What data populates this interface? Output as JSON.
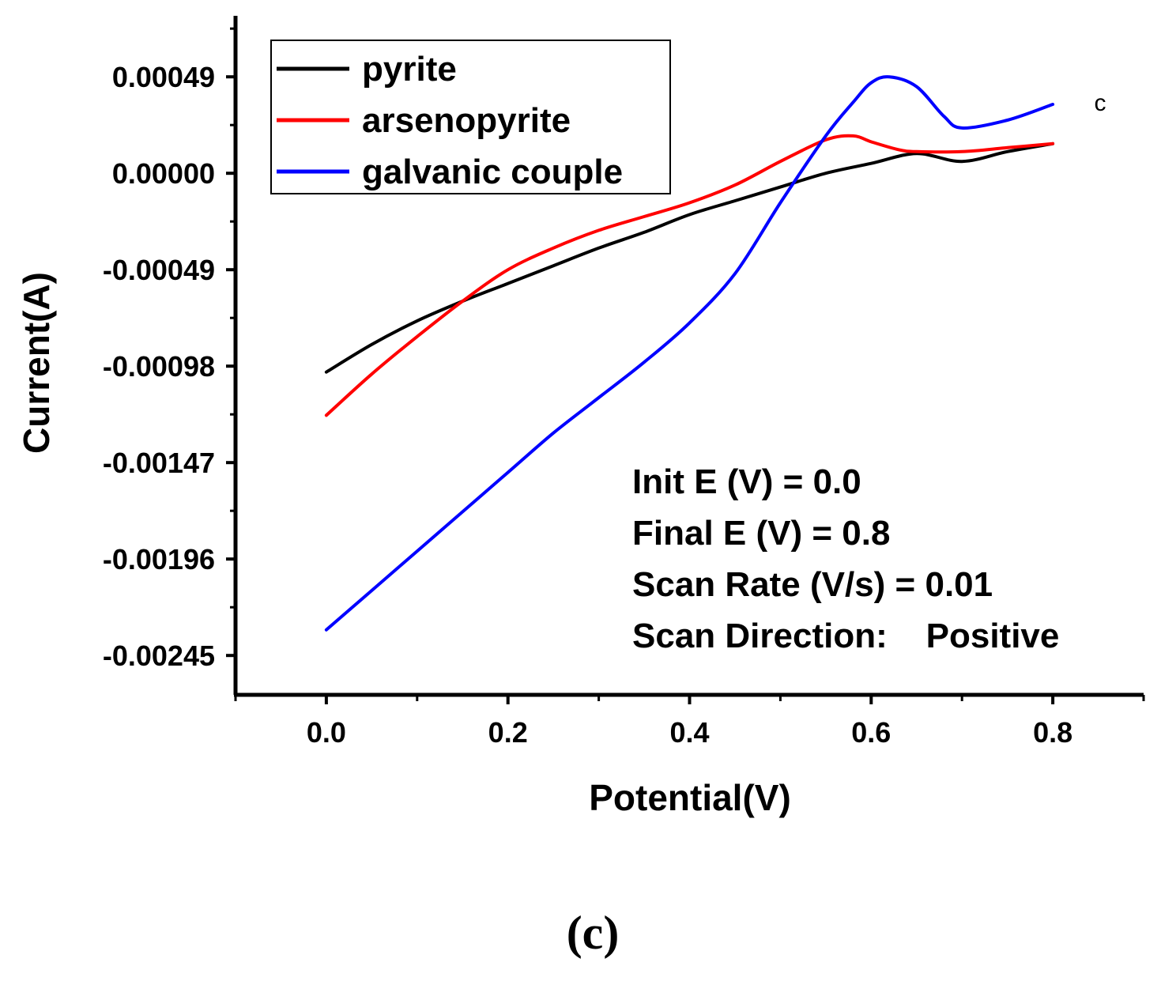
{
  "chart_data": {
    "type": "line",
    "title": "",
    "xlabel": "Potential(V)",
    "ylabel": "Current(A)",
    "xlim": [
      -0.1,
      0.9
    ],
    "ylim": [
      -0.00265,
      0.0008
    ],
    "x_ticks": [
      0.0,
      0.2,
      0.4,
      0.6,
      0.8
    ],
    "x_tick_labels": [
      "0.0",
      "0.2",
      "0.4",
      "0.6",
      "0.8"
    ],
    "y_ticks": [
      0.00049,
      0.0,
      -0.00049,
      -0.00098,
      -0.00147,
      -0.00196,
      -0.00245
    ],
    "y_tick_labels": [
      "0.00049",
      "0.00000",
      "-0.00049",
      "-0.00098",
      "-0.00147",
      "-0.00196",
      "-0.00245"
    ],
    "grid": false,
    "legend_position": "top-left",
    "series": [
      {
        "name": "pyrite",
        "color": "#000000",
        "x": [
          0.0,
          0.05,
          0.1,
          0.15,
          0.2,
          0.25,
          0.3,
          0.35,
          0.4,
          0.45,
          0.5,
          0.55,
          0.6,
          0.65,
          0.7,
          0.75,
          0.8
        ],
        "y": [
          -0.00101,
          -0.00087,
          -0.00075,
          -0.00065,
          -0.00056,
          -0.00047,
          -0.00038,
          -0.0003,
          -0.00021,
          -0.00014,
          -7e-05,
          0.0,
          5e-05,
          0.0001,
          6e-05,
          0.00011,
          0.00015
        ]
      },
      {
        "name": "arsenopyrite",
        "color": "#ff0000",
        "x": [
          0.0,
          0.05,
          0.1,
          0.15,
          0.2,
          0.25,
          0.3,
          0.35,
          0.4,
          0.45,
          0.5,
          0.55,
          0.58,
          0.6,
          0.63,
          0.65,
          0.7,
          0.75,
          0.8
        ],
        "y": [
          -0.00123,
          -0.00102,
          -0.00083,
          -0.00065,
          -0.00049,
          -0.00038,
          -0.00029,
          -0.00022,
          -0.00015,
          -6e-05,
          6e-05,
          0.00017,
          0.00019,
          0.00016,
          0.00012,
          0.00011,
          0.00011,
          0.00013,
          0.00015
        ]
      },
      {
        "name": "galvanic couple",
        "color": "#0000ff",
        "x": [
          0.0,
          0.05,
          0.1,
          0.15,
          0.2,
          0.25,
          0.3,
          0.35,
          0.4,
          0.45,
          0.5,
          0.55,
          0.58,
          0.6,
          0.62,
          0.65,
          0.68,
          0.7,
          0.75,
          0.8
        ],
        "y": [
          -0.00232,
          -0.00212,
          -0.00192,
          -0.00172,
          -0.00152,
          -0.00132,
          -0.00114,
          -0.00096,
          -0.00076,
          -0.00051,
          -0.00015,
          0.00019,
          0.00036,
          0.00046,
          0.00049,
          0.00044,
          0.00029,
          0.00023,
          0.00027,
          0.00035
        ]
      }
    ],
    "annotations": [
      "Init E (V) = 0.0",
      "Final E (V) = 0.8",
      "Scan Rate (V/s) = 0.01",
      "Scan Direction:    Positive"
    ],
    "corner_letter": "c",
    "panel_label": "(c)"
  }
}
